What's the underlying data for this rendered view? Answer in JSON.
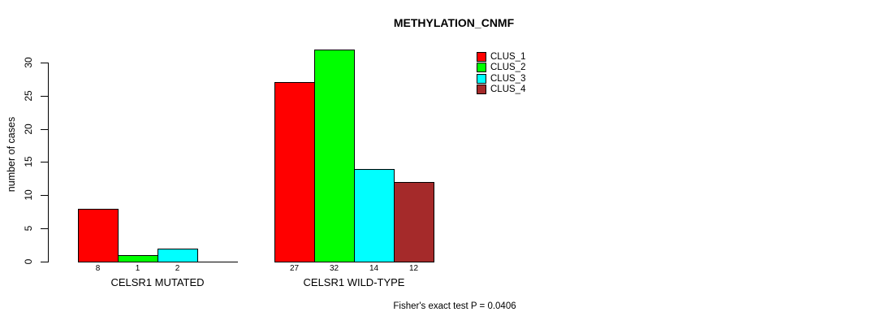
{
  "chart_data": {
    "type": "bar",
    "title": "METHYLATION_CNMF",
    "ylabel": "number of cases",
    "xlabel": "",
    "ylim": [
      0,
      32
    ],
    "yticks": [
      0,
      5,
      10,
      15,
      20,
      25,
      30
    ],
    "grid": false,
    "legend_position": "top-right-inside",
    "series": [
      {
        "name": "CLUS_1",
        "color": "#ff0000"
      },
      {
        "name": "CLUS_2",
        "color": "#00ff00"
      },
      {
        "name": "CLUS_3",
        "color": "#00ffff"
      },
      {
        "name": "CLUS_4",
        "color": "#a52a2a"
      }
    ],
    "groups": [
      {
        "label": "CELSR1 MUTATED",
        "values": [
          8,
          1,
          2,
          0
        ],
        "bar_labels": [
          "8",
          "1",
          "2",
          ""
        ]
      },
      {
        "label": "CELSR1 WILD-TYPE",
        "values": [
          27,
          32,
          14,
          12
        ],
        "bar_labels": [
          "27",
          "32",
          "14",
          "12"
        ]
      }
    ],
    "annotation": "Fisher's exact test P = 0.0406",
    "axis_color": "#000000",
    "text_color": "#000000",
    "background": "#ffffff"
  }
}
